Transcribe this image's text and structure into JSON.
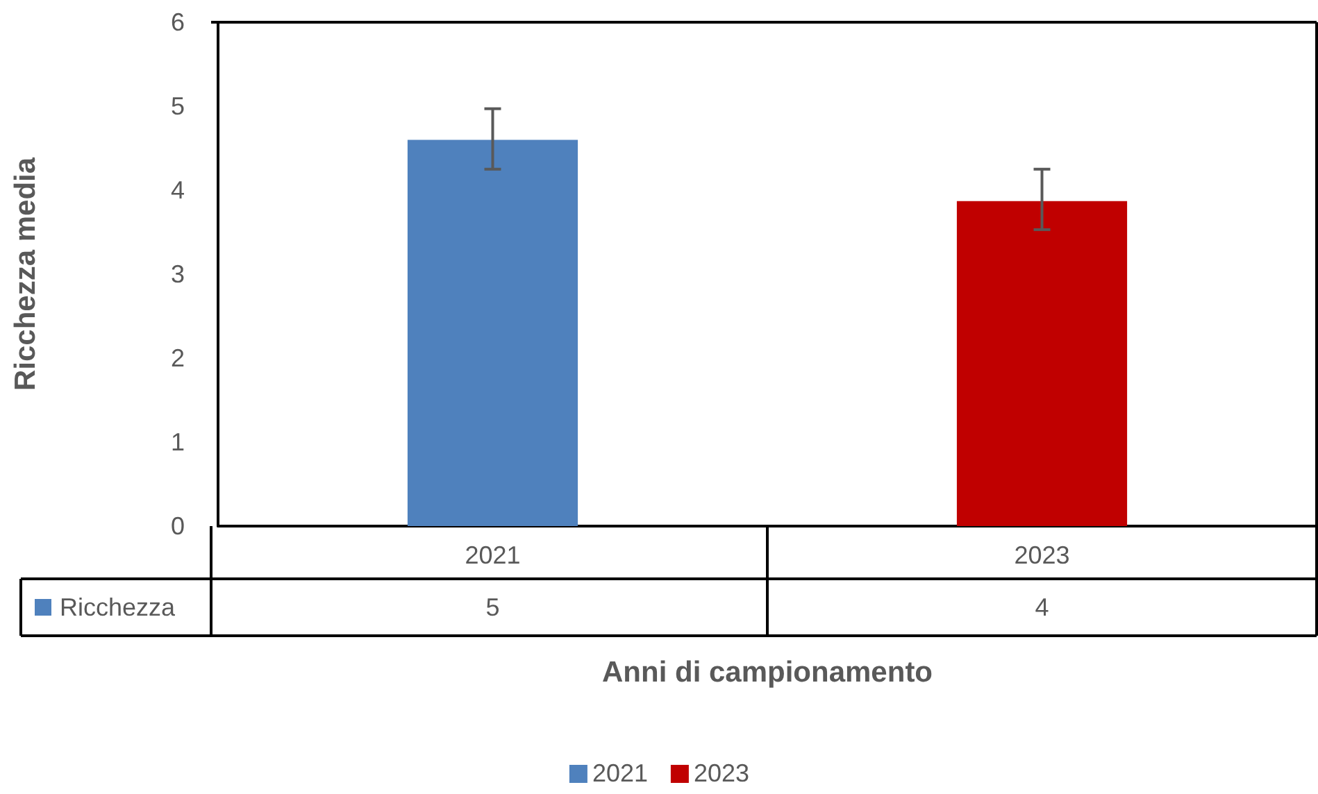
{
  "chart_data": {
    "type": "bar",
    "xlabel": "Anni di campionamento",
    "ylabel": "Ricchezza media",
    "categories": [
      "2021",
      "2023"
    ],
    "series": [
      {
        "name": "Ricchezza",
        "color": "#4f81bd",
        "colors": [
          "#4f81bd",
          "#c00000"
        ],
        "values": [
          4.6,
          3.87
        ],
        "errors": [
          [
            4.25,
            4.97
          ],
          [
            3.53,
            4.25
          ]
        ],
        "value_labels": [
          "5",
          "4"
        ]
      }
    ],
    "ylim": [
      0,
      6
    ],
    "yticks": [
      0,
      1,
      2,
      3,
      4,
      5,
      6
    ],
    "grid": false,
    "legend": "bottom"
  }
}
